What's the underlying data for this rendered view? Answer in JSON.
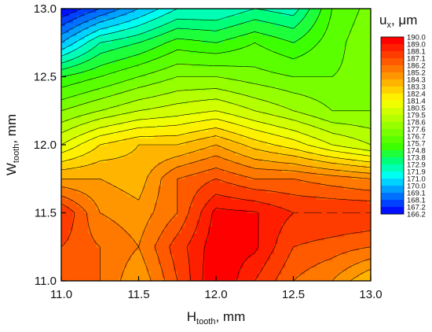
{
  "chart_data": {
    "type": "heatmap",
    "subtype": "filled-contour",
    "title": "",
    "x": {
      "label_main": "H",
      "label_sub": "tooth",
      "label_tail": ", mm",
      "range": [
        11.0,
        13.0
      ],
      "ticks": [
        "11.0",
        "11.5",
        "12.0",
        "12.5",
        "13.0"
      ],
      "grid": false
    },
    "y": {
      "label_main": "W",
      "label_sub": "tooth",
      "label_tail": ", mm",
      "range": [
        11.0,
        13.0
      ],
      "ticks": [
        "11.0",
        "11.5",
        "12.0",
        "12.5",
        "13.0"
      ],
      "grid": false
    },
    "x_values": [
      11.0,
      11.25,
      11.5,
      11.75,
      12.0,
      12.25,
      12.5,
      12.75,
      13.0
    ],
    "y_values": [
      11.0,
      11.25,
      11.5,
      11.75,
      12.0,
      12.25,
      12.5,
      12.75,
      13.0
    ],
    "z": [
      [
        187.1,
        186.2,
        184.3,
        187.1,
        190.0,
        188.1,
        186.2,
        185.2,
        183.3
      ],
      [
        187.1,
        186.2,
        185.2,
        187.6,
        189.6,
        189.2,
        187.1,
        186.7,
        186.2
      ],
      [
        188.1,
        185.2,
        184.6,
        186.2,
        189.3,
        189.1,
        188.1,
        188.1,
        188.1
      ],
      [
        184.3,
        184.3,
        183.8,
        186.2,
        187.1,
        186.2,
        186.2,
        185.7,
        185.2
      ],
      [
        180.5,
        182.4,
        183.3,
        183.3,
        184.3,
        182.9,
        181.9,
        180.5,
        179.5
      ],
      [
        177.6,
        178.6,
        179.5,
        180.0,
        180.5,
        179.5,
        178.6,
        177.6,
        177.6
      ],
      [
        174.8,
        175.7,
        176.7,
        177.6,
        177.6,
        177.1,
        176.7,
        176.7,
        177.1
      ],
      [
        170.0,
        172.9,
        173.8,
        175.2,
        174.8,
        175.7,
        174.8,
        176.2,
        177.6
      ],
      [
        166.2,
        168.1,
        170.0,
        171.9,
        171.9,
        172.9,
        172.4,
        175.7,
        177.1
      ]
    ],
    "colorbar": {
      "title_main": "u",
      "title_sub": "x",
      "title_tail": ", μm",
      "levels": [
        "190.0",
        "189.0",
        "188.1",
        "187.1",
        "186.2",
        "185.2",
        "184.3",
        "183.3",
        "182.4",
        "181.4",
        "180.5",
        "179.5",
        "178.6",
        "177.6",
        "176.7",
        "175.7",
        "174.8",
        "173.8",
        "172.9",
        "171.9",
        "171.0",
        "170.0",
        "169.1",
        "168.1",
        "167.2",
        "166.2"
      ],
      "colors": [
        "#ff0000",
        "#ff1f00",
        "#ff3c00",
        "#ff5a00",
        "#ff7800",
        "#ff9600",
        "#ffb400",
        "#ffd200",
        "#fff000",
        "#f0ff00",
        "#d2ff00",
        "#b4ff00",
        "#96ff00",
        "#78ff00",
        "#5aff00",
        "#3cff00",
        "#1eff3c",
        "#00ff78",
        "#00ffb4",
        "#00fff0",
        "#00d2ff",
        "#00a0ff",
        "#0070ff",
        "#0040ff",
        "#0010ff"
      ]
    }
  }
}
